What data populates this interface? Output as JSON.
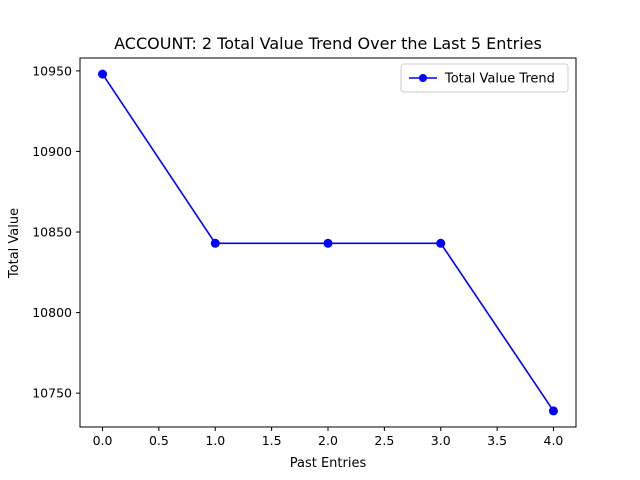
{
  "chart_data": {
    "type": "line",
    "title": "ACCOUNT: 2 Total Value Trend Over the Last 5 Entries",
    "xlabel": "Past Entries",
    "ylabel": "Total Value",
    "x": [
      0,
      1,
      2,
      3,
      4
    ],
    "series": [
      {
        "name": "Total Value Trend",
        "values": [
          10948,
          10843,
          10843,
          10843,
          10739
        ],
        "color": "#0000ff",
        "marker": "circle"
      }
    ],
    "xlim": [
      -0.2,
      4.2
    ],
    "ylim": [
      10729,
      10958
    ],
    "xticks": [
      0.0,
      0.5,
      1.0,
      1.5,
      2.0,
      2.5,
      3.0,
      3.5,
      4.0
    ],
    "xtick_labels": [
      "0.0",
      "0.5",
      "1.0",
      "1.5",
      "2.0",
      "2.5",
      "3.0",
      "3.5",
      "4.0"
    ],
    "yticks": [
      10750,
      10800,
      10850,
      10900,
      10950
    ],
    "ytick_labels": [
      "10750",
      "10800",
      "10850",
      "10900",
      "10950"
    ],
    "grid": false,
    "legend_position": "top-right"
  }
}
